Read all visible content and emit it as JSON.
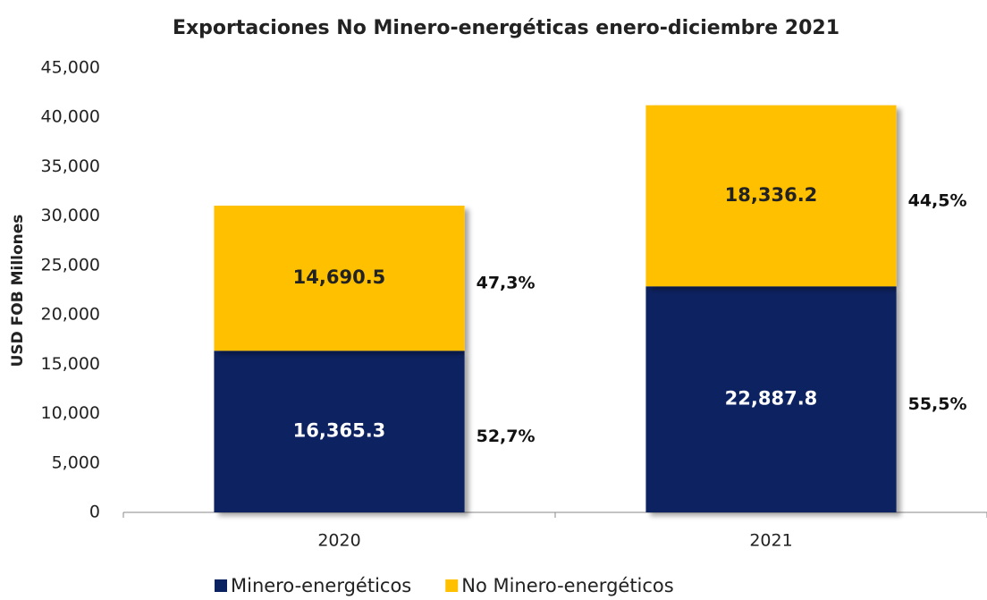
{
  "chart_data": {
    "type": "stacked_bar",
    "title": "Exportaciones No Minero-energéticas enero-diciembre 2021",
    "y_label": "USD FOB Millones",
    "categories": [
      "2020",
      "2021"
    ],
    "series": [
      {
        "name": "Minero-energéticos",
        "color": "#0b2260",
        "label_color": "#ffffff",
        "values": [
          16365.3,
          22887.8
        ],
        "value_labels": [
          "16,365.3",
          "22,887.8"
        ],
        "share_labels": [
          "52,7%",
          "55,5%"
        ]
      },
      {
        "name": "No Minero-energéticos",
        "color": "#ffc000",
        "label_color": "#222222",
        "values": [
          14690.5,
          18336.2
        ],
        "value_labels": [
          "14,690.5",
          "18,336.2"
        ],
        "share_labels": [
          "47,3%",
          "44,5%"
        ]
      }
    ],
    "ylim": [
      0,
      45000
    ],
    "yticks": [
      0,
      {
        "value": 5000,
        "label": "5,000"
      },
      {
        "value": 10000,
        "label": "10,000"
      },
      {
        "value": 15000,
        "label": "15,000"
      },
      {
        "value": 20000,
        "label": "20,000"
      },
      {
        "value": 25000,
        "label": "25,000"
      },
      {
        "value": 30000,
        "label": "30,000"
      },
      {
        "value": 35000,
        "label": "35,000"
      },
      {
        "value": 40000,
        "label": "40,000"
      },
      {
        "value": 45000,
        "label": "45,000"
      }
    ],
    "legend": "bottom"
  }
}
